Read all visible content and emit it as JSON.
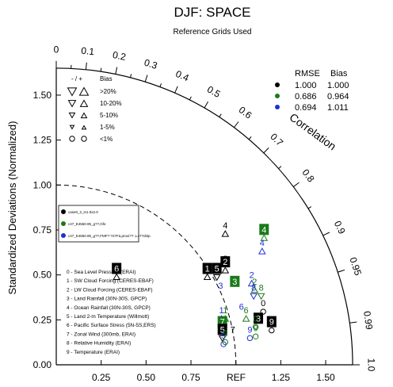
{
  "chart_data": {
    "type": "scatter",
    "diagram": "taylor",
    "title": "DJF: SPACE",
    "subtitle": "Reference Grids Used",
    "ylabel": "Standardized Deviations (Normalized)",
    "correlation_label": "Correlation",
    "ref_label": "REF",
    "ylim": [
      0,
      1.65
    ],
    "x_ticks": [
      "0.25",
      "0.50",
      "0.75",
      "1.25",
      "1.50"
    ],
    "y_ticks": [
      "0.00",
      "0.25",
      "0.50",
      "0.75",
      "1.00",
      "1.25",
      "1.50"
    ],
    "corr_ticks": [
      "0",
      "0.1",
      "0.2",
      "0.3",
      "0.4",
      "0.5",
      "0.6",
      "0.7",
      "0.8",
      "0.9",
      "0.95",
      "0.99",
      "1.0"
    ],
    "bias_legend": {
      "header_sign": "- / +",
      "header_bias": "Bias",
      "rows": [
        ">20%",
        "10-20%",
        "5-10%",
        "1-5%",
        "<1%"
      ]
    },
    "rmse_table": {
      "headers": [
        "RMSE",
        "Bias"
      ],
      "rows": [
        {
          "color": "#000000",
          "rmse": "1.000",
          "bias": "1.000"
        },
        {
          "color": "#1a7a1a",
          "rmse": "0.686",
          "bias": "0.964"
        },
        {
          "color": "#1f2fd6",
          "rmse": "0.694",
          "bias": "1.011"
        }
      ]
    },
    "case_box": {
      "entries": [
        {
          "color": "#000000",
          "label": "case0_2_in1.0x2.0"
        },
        {
          "color": "#1a7a1a",
          "label": "c47_E4550.95_g??,Gfe"
        },
        {
          "color": "#1f2fd6",
          "label": "c47_E4550.95_g??,FMF?-?27Fa,proxi??-,L47?dstp"
        }
      ]
    },
    "variables": [
      "0 - Sea Level Pressure (ERAI)",
      "1 - SW Cloud Forcing (CERES-EBAF)",
      "2 - LW Cloud Forcing (CERES-EBAF)",
      "3 - Land Rainfall (30N-30S, GPCP)",
      "4 - Ocean Rainfall (30N-30S, GPCP)",
      "5 - Land 2-m Temperature (Willmott)",
      "6 - Pacific Surface Stress (5N-5S,ERS)",
      "7 - Zonal Wind (300mb, ERAI)",
      "8 - Relative Humidity (ERAI)",
      "9 - Temperature (ERAI)"
    ],
    "points": [
      {
        "series": 0,
        "id": "4",
        "x": 0.941,
        "y": 0.776,
        "style": "plain",
        "marker": "tri-up"
      },
      {
        "series": 1,
        "id": "4",
        "x": 1.157,
        "y": 0.753,
        "style": "box",
        "marker": "tri-up"
      },
      {
        "series": 2,
        "id": "4",
        "x": 1.146,
        "y": 0.679,
        "style": "plain",
        "marker": "tri-up"
      },
      {
        "series": 0,
        "id": "3",
        "x": 0.941,
        "y": 0.592,
        "style": "plain",
        "marker": "none"
      },
      {
        "series": 0,
        "id": "2",
        "x": 0.941,
        "y": 0.573,
        "style": "box",
        "marker": "tri-up"
      },
      {
        "series": 0,
        "id": "1",
        "x": 0.841,
        "y": 0.536,
        "style": "box",
        "marker": "tri-up"
      },
      {
        "series": 0,
        "id": "5",
        "x": 0.894,
        "y": 0.536,
        "style": "box",
        "marker": "tri-down"
      },
      {
        "series": 0,
        "id": "6",
        "x": 0.336,
        "y": 0.536,
        "style": "box",
        "marker": "tri-up"
      },
      {
        "series": 1,
        "id": "3",
        "x": 0.994,
        "y": 0.464,
        "style": "box",
        "marker": "none"
      },
      {
        "series": 2,
        "id": "2",
        "x": 1.088,
        "y": 0.5,
        "style": "plain",
        "marker": "tri-up"
      },
      {
        "series": 2,
        "id": "3",
        "x": 0.915,
        "y": 0.441,
        "style": "plain",
        "marker": "none"
      },
      {
        "series": 1,
        "id": "2",
        "x": 1.104,
        "y": 0.464,
        "style": "plain",
        "marker": "tri-up"
      },
      {
        "series": 1,
        "id": "8",
        "x": 1.141,
        "y": 0.431,
        "style": "plain",
        "marker": "tri-down"
      },
      {
        "series": 2,
        "id": "8",
        "x": 1.099,
        "y": 0.431,
        "style": "plain",
        "marker": "tri-down"
      },
      {
        "series": 2,
        "id": "1",
        "x": 0.92,
        "y": 0.304,
        "style": "plain",
        "marker": "tri-up"
      },
      {
        "series": 1,
        "id": "1",
        "x": 0.941,
        "y": 0.304,
        "style": "plain",
        "marker": "tri-up"
      },
      {
        "series": 2,
        "id": "6",
        "x": 1.031,
        "y": 0.325,
        "style": "plain",
        "marker": "none"
      },
      {
        "series": 0,
        "id": "0",
        "x": 1.152,
        "y": 0.344,
        "style": "plain",
        "marker": "circle"
      },
      {
        "series": 1,
        "id": "6",
        "x": 1.057,
        "y": 0.304,
        "style": "plain",
        "marker": "tri-up"
      },
      {
        "series": 0,
        "id": "3",
        "x": 1.125,
        "y": 0.259,
        "style": "box",
        "marker": "none"
      },
      {
        "series": 1,
        "id": "0",
        "x": 1.11,
        "y": 0.259,
        "style": "plain",
        "marker": "circle"
      },
      {
        "series": 0,
        "id": "7",
        "x": 0.983,
        "y": 0.197,
        "style": "plain",
        "marker": "none"
      },
      {
        "series": 1,
        "id": "7",
        "x": 0.925,
        "y": 0.24,
        "style": "box",
        "marker": "tri-down"
      },
      {
        "series": 0,
        "id": "5",
        "x": 0.925,
        "y": 0.197,
        "style": "box",
        "marker": "tri-down"
      },
      {
        "series": 2,
        "id": "9",
        "x": 1.078,
        "y": 0.197,
        "style": "plain",
        "marker": "circle"
      },
      {
        "series": 1,
        "id": "9",
        "x": 1.11,
        "y": 0.206,
        "style": "plain",
        "marker": "circle"
      },
      {
        "series": 0,
        "id": "9",
        "x": 1.199,
        "y": 0.24,
        "style": "box",
        "marker": "circle"
      },
      {
        "series": 2,
        "id": "5",
        "x": 0.931,
        "y": 0.163,
        "style": "plain",
        "marker": "circle"
      },
      {
        "series": 1,
        "id": "5",
        "x": 0.941,
        "y": 0.175,
        "style": "plain",
        "marker": "circle"
      }
    ]
  }
}
